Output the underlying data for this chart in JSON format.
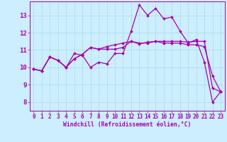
{
  "xlabel": "Windchill (Refroidissement éolien,°C)",
  "background_color": "#cceeff",
  "line_color": "#aa00aa",
  "xlim": [
    -0.5,
    23.5
  ],
  "ylim": [
    7.5,
    13.8
  ],
  "yticks": [
    8,
    9,
    10,
    11,
    12,
    13
  ],
  "xticks": [
    0,
    1,
    2,
    3,
    4,
    5,
    6,
    7,
    8,
    9,
    10,
    11,
    12,
    13,
    14,
    15,
    16,
    17,
    18,
    19,
    20,
    21,
    22,
    23
  ],
  "series": [
    [
      9.9,
      9.8,
      10.6,
      10.4,
      10.0,
      10.8,
      10.7,
      10.0,
      10.3,
      10.2,
      10.8,
      10.8,
      12.1,
      13.6,
      13.0,
      13.4,
      12.8,
      12.9,
      12.1,
      11.4,
      11.6,
      10.3,
      8.0,
      8.6
    ],
    [
      9.9,
      9.8,
      10.6,
      10.4,
      10.0,
      10.5,
      10.75,
      11.15,
      11.05,
      11.05,
      11.05,
      11.15,
      11.5,
      11.35,
      11.45,
      11.5,
      11.5,
      11.5,
      11.5,
      11.45,
      11.5,
      11.5,
      8.8,
      8.6
    ],
    [
      9.9,
      9.8,
      10.6,
      10.4,
      10.0,
      10.5,
      10.75,
      11.15,
      11.05,
      11.2,
      11.3,
      11.4,
      11.5,
      11.4,
      11.4,
      11.5,
      11.4,
      11.4,
      11.4,
      11.3,
      11.3,
      11.2,
      9.5,
      8.6
    ]
  ],
  "grid_color": "#aadddd",
  "marker": "D",
  "markersize": 2.0,
  "linewidth": 0.9,
  "tick_fontsize": 5.5,
  "xlabel_fontsize": 5.8,
  "ytick_fontsize": 6.5
}
